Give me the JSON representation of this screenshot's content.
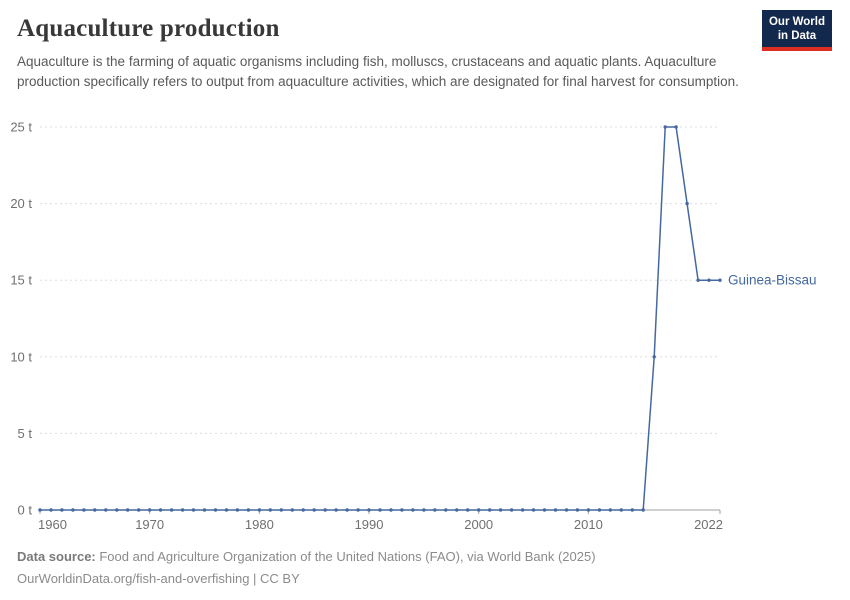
{
  "header": {
    "title": "Aquaculture production",
    "subtitle": "Aquaculture is the farming of aquatic organisms including fish, molluscs, crustaceans and aquatic plants. Aquaculture production specifically refers to output from aquaculture activities, which are designated for final harvest for consumption.",
    "logo": {
      "line1": "Our World",
      "line2": "in Data",
      "bg_color": "#12294d",
      "accent_color": "#dc2e22"
    }
  },
  "chart_data": {
    "type": "line",
    "title": "Aquaculture production",
    "unit": "t",
    "xlim": [
      1960,
      2022
    ],
    "ylim": [
      0,
      25
    ],
    "grid": "dashed-horizontal",
    "legend_position": "end-of-line-label",
    "x_ticks": [
      1960,
      1970,
      1980,
      1990,
      2000,
      2010,
      2022
    ],
    "y_ticks": [
      0,
      5,
      10,
      15,
      20,
      25
    ],
    "y_tick_labels": [
      "0 t",
      "5 t",
      "10 t",
      "15 t",
      "20 t",
      "25 t"
    ],
    "entity_label": "Guinea-Bissau",
    "x": [
      1960,
      1961,
      1962,
      1963,
      1964,
      1965,
      1966,
      1967,
      1968,
      1969,
      1970,
      1971,
      1972,
      1973,
      1974,
      1975,
      1976,
      1977,
      1978,
      1979,
      1980,
      1981,
      1982,
      1983,
      1984,
      1985,
      1986,
      1987,
      1988,
      1989,
      1990,
      1991,
      1992,
      1993,
      1994,
      1995,
      1996,
      1997,
      1998,
      1999,
      2000,
      2001,
      2002,
      2003,
      2004,
      2005,
      2006,
      2007,
      2008,
      2009,
      2010,
      2011,
      2012,
      2013,
      2014,
      2015,
      2016,
      2017,
      2018,
      2019,
      2020,
      2021,
      2022
    ],
    "series": [
      {
        "name": "Guinea-Bissau",
        "color": "#44689f",
        "values": [
          0,
          0,
          0,
          0,
          0,
          0,
          0,
          0,
          0,
          0,
          0,
          0,
          0,
          0,
          0,
          0,
          0,
          0,
          0,
          0,
          0,
          0,
          0,
          0,
          0,
          0,
          0,
          0,
          0,
          0,
          0,
          0,
          0,
          0,
          0,
          0,
          0,
          0,
          0,
          0,
          0,
          0,
          0,
          0,
          0,
          0,
          0,
          0,
          0,
          0,
          0,
          0,
          0,
          0,
          0,
          0,
          10,
          25,
          25,
          20,
          15,
          15,
          15
        ]
      }
    ]
  },
  "footer": {
    "data_source_label": "Data source:",
    "data_source_text": " Food and Agriculture Organization of the United Nations (FAO), via World Bank (2025)",
    "link_text": "OurWorldinData.org/fish-and-overfishing",
    "license_text": " | CC BY"
  },
  "colors": {
    "line": "#44689f",
    "gridline": "#dedede",
    "axis": "#a1a1a1",
    "tick_label": "#707070"
  }
}
